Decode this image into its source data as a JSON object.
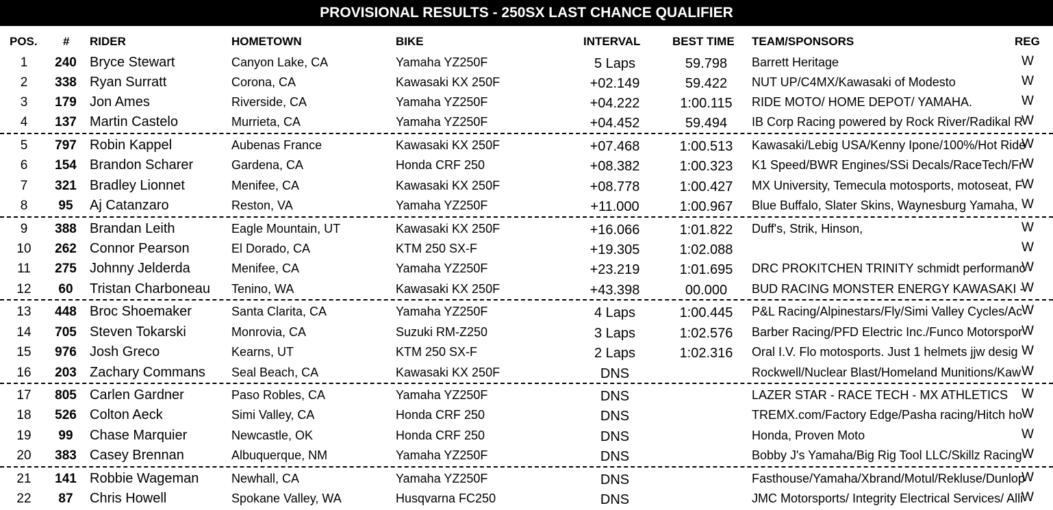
{
  "title": "PROVISIONAL RESULTS - 250SX LAST CHANCE QUALIFIER",
  "headers": {
    "pos": "POS.",
    "num": "#",
    "rider": "RIDER",
    "hometown": "HOMETOWN",
    "bike": "BIKE",
    "interval": "INTERVAL",
    "best_time": "BEST TIME",
    "team": "TEAM/SPONSORS",
    "reg": "REG"
  },
  "rows": [
    {
      "pos": "1",
      "num": "240",
      "rider": "Bryce Stewart",
      "hometown": "Canyon Lake, CA",
      "bike": "Yamaha YZ250F",
      "interval": "5 Laps",
      "best": "59.798",
      "team": "Barrett Heritage",
      "reg": "W"
    },
    {
      "pos": "2",
      "num": "338",
      "rider": "Ryan Surratt",
      "hometown": "Corona, CA",
      "bike": "Kawasaki KX 250F",
      "interval": "+02.149",
      "best": "59.422",
      "team": "NUT UP/C4MX/Kawasaki of Modesto",
      "reg": "W"
    },
    {
      "pos": "3",
      "num": "179",
      "rider": "Jon Ames",
      "hometown": "Riverside, CA",
      "bike": "Yamaha YZ250F",
      "interval": "+04.222",
      "best": "1:00.115",
      "team": "RIDE MOTO/ HOME DEPOT/ YAMAHA.",
      "reg": "W"
    },
    {
      "pos": "4",
      "num": "137",
      "rider": "Martin Castelo",
      "hometown": "Murrieta, CA",
      "bike": "Yamaha YZ250F",
      "interval": "+04.452",
      "best": "59.494",
      "team": "IB Corp Racing powered by Rock River/Radikal R",
      "reg": "W"
    },
    {
      "pos": "5",
      "num": "797",
      "rider": "Robin Kappel",
      "hometown": "Aubenas France",
      "bike": "Kawasaki KX 250F",
      "interval": "+07.468",
      "best": "1:00.513",
      "team": "Kawasaki/Lebig USA/Kenny Ipone/100%/Hot Ride",
      "reg": "W"
    },
    {
      "pos": "6",
      "num": "154",
      "rider": "Brandon Scharer",
      "hometown": "Gardena, CA",
      "bike": "Honda CRF 250",
      "interval": "+08.382",
      "best": "1:00.323",
      "team": "K1 Speed/BWR Engines/SSi Decals/RaceTech/Fr",
      "reg": "W"
    },
    {
      "pos": "7",
      "num": "321",
      "rider": "Bradley Lionnet",
      "hometown": "Menifee, CA",
      "bike": "Kawasaki KX 250F",
      "interval": "+08.778",
      "best": "1:00.427",
      "team": "MX University, Temecula motosports, motoseat, F",
      "reg": "W"
    },
    {
      "pos": "8",
      "num": "95",
      "rider": "Aj Catanzaro",
      "hometown": "Reston, VA",
      "bike": "Yamaha YZ250F",
      "interval": "+11.000",
      "best": "1:00.967",
      "team": "Blue Buffalo, Slater Skins, Waynesburg Yamaha,",
      "reg": "W"
    },
    {
      "pos": "9",
      "num": "388",
      "rider": "Brandan Leith",
      "hometown": "Eagle Mountain, UT",
      "bike": "Kawasaki KX 250F",
      "interval": "+16.066",
      "best": "1:01.822",
      "team": "Duff's, Strik, Hinson,",
      "reg": "W"
    },
    {
      "pos": "10",
      "num": "262",
      "rider": "Connor Pearson",
      "hometown": "El Dorado, CA",
      "bike": "KTM 250 SX-F",
      "interval": "+19.305",
      "best": "1:02.088",
      "team": "",
      "reg": "W"
    },
    {
      "pos": "11",
      "num": "275",
      "rider": "Johnny Jelderda",
      "hometown": "Menifee, CA",
      "bike": "Yamaha YZ250F",
      "interval": "+23.219",
      "best": "1:01.695",
      "team": "DRC PROKITCHEN TRINITY schmidt performanc",
      "reg": "W"
    },
    {
      "pos": "12",
      "num": "60",
      "rider": "Tristan Charboneau",
      "hometown": "Tenino, WA",
      "bike": "Kawasaki KX 250F",
      "interval": "+43.398",
      "best": "00.000",
      "team": "BUD RACING MONSTER ENERGY KAWASAKI -",
      "reg": "W"
    },
    {
      "pos": "13",
      "num": "448",
      "rider": "Broc Shoemaker",
      "hometown": "Santa Clarita, CA",
      "bike": "Yamaha YZ250F",
      "interval": "4 Laps",
      "best": "1:00.445",
      "team": "P&L Racing/Alpinestars/Fly/Simi Valley Cycles/Ac",
      "reg": "W"
    },
    {
      "pos": "14",
      "num": "705",
      "rider": "Steven Tokarski",
      "hometown": "Monrovia, CA",
      "bike": "Suzuki RM-Z250",
      "interval": "3 Laps",
      "best": "1:02.576",
      "team": "Barber Racing/PFD Electric Inc./Funco Motorspor",
      "reg": "W"
    },
    {
      "pos": "15",
      "num": "976",
      "rider": "Josh Greco",
      "hometown": "Kearns, UT",
      "bike": "KTM 250 SX-F",
      "interval": "2 Laps",
      "best": "1:02.316",
      "team": "Oral I.V. Flo motosports.  Just 1 helmets  jjw desig",
      "reg": "W"
    },
    {
      "pos": "16",
      "num": "203",
      "rider": "Zachary Commans",
      "hometown": "Seal Beach, CA",
      "bike": "Kawasaki KX 250F",
      "interval": "DNS",
      "best": "",
      "team": "Rockwell/Nuclear Blast/Homeland Munitions/Kaw",
      "reg": "W"
    },
    {
      "pos": "17",
      "num": "805",
      "rider": "Carlen Gardner",
      "hometown": "Paso Robles, CA",
      "bike": "Yamaha YZ250F",
      "interval": "DNS",
      "best": "",
      "team": "LAZER STAR - RACE TECH - MX ATHLETICS",
      "reg": "W"
    },
    {
      "pos": "18",
      "num": "526",
      "rider": "Colton Aeck",
      "hometown": "Simi Valley, CA",
      "bike": "Honda CRF 250",
      "interval": "DNS",
      "best": "",
      "team": "TREMX.com/Factory Edge/Pasha racing/Hitch ho",
      "reg": "W"
    },
    {
      "pos": "19",
      "num": "99",
      "rider": "Chase Marquier",
      "hometown": "Newcastle, OK",
      "bike": "Honda CRF 250",
      "interval": "DNS",
      "best": "",
      "team": "Honda, Proven Moto",
      "reg": "W"
    },
    {
      "pos": "20",
      "num": "383",
      "rider": "Casey Brennan",
      "hometown": "Albuquerque, NM",
      "bike": "Yamaha YZ250F",
      "interval": "DNS",
      "best": "",
      "team": "Bobby J's Yamaha/Big Rig Tool LLC/Skillz Racing",
      "reg": "W"
    },
    {
      "pos": "21",
      "num": "141",
      "rider": "Robbie Wageman",
      "hometown": "Newhall, CA",
      "bike": "Yamaha YZ250F",
      "interval": "DNS",
      "best": "",
      "team": "Fasthouse/Yamaha/Xbrand/Motul/Rekluse/Dunlop",
      "reg": "W"
    },
    {
      "pos": "22",
      "num": "87",
      "rider": "Chris Howell",
      "hometown": "Spokane Valley, WA",
      "bike": "Husqvarna FC250",
      "interval": "DNS",
      "best": "",
      "team": "JMC Motorsports/ Integrity Electrical Services/ Alli",
      "reg": "W"
    }
  ]
}
